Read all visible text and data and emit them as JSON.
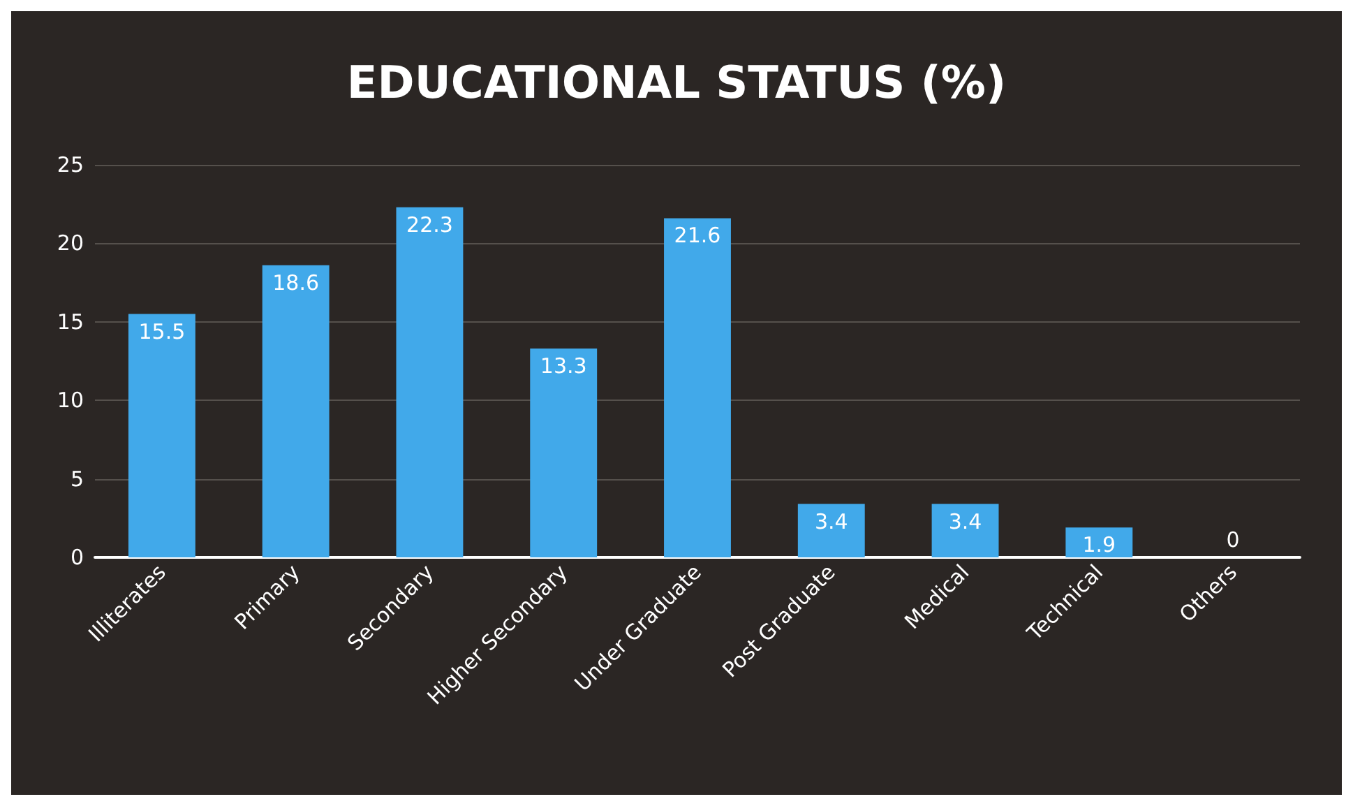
{
  "chart_data": {
    "type": "bar",
    "title": "EDUCATIONAL STATUS (%)",
    "categories": [
      "Illiterates",
      "Primary",
      "Secondary",
      "Higher Secondary",
      "Under Graduate",
      "Post Graduate",
      "Medical",
      "Technical",
      "Others"
    ],
    "values": [
      15.5,
      18.6,
      22.3,
      13.3,
      21.6,
      3.4,
      3.4,
      1.9,
      0
    ],
    "color": "#41a9ea",
    "ylim": [
      0,
      25
    ],
    "yticks": [
      0,
      5,
      10,
      15,
      20,
      25
    ],
    "grid": "y",
    "data_labels": true
  }
}
